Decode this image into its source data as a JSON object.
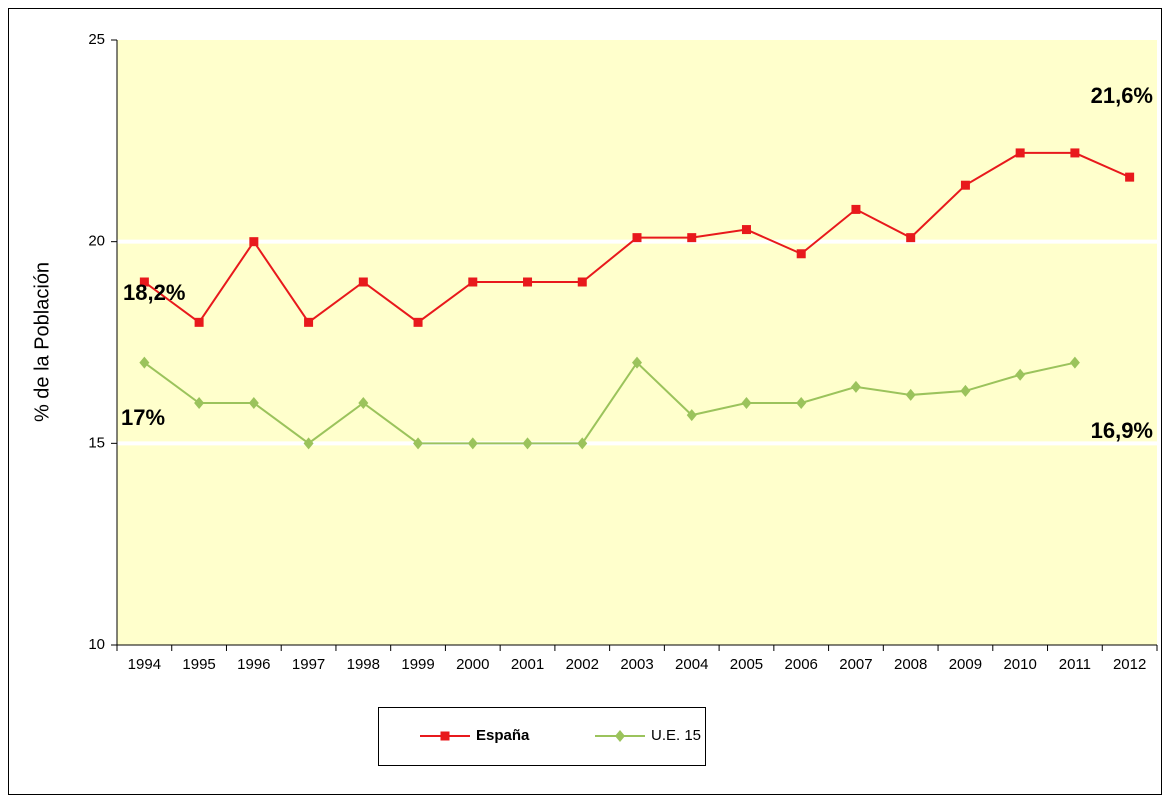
{
  "chart_data": {
    "type": "line",
    "y_label": "% de la Población",
    "categories": [
      "1994",
      "1995",
      "1996",
      "1997",
      "1998",
      "1999",
      "2000",
      "2001",
      "2002",
      "2003",
      "2004",
      "2005",
      "2006",
      "2007",
      "2008",
      "2009",
      "2010",
      "2011",
      "2012"
    ],
    "series": [
      {
        "name": "España",
        "color": "#e8191c",
        "marker": "square",
        "values": [
          19,
          18,
          20,
          18,
          19,
          18,
          19,
          19,
          19,
          20.1,
          20.1,
          20.3,
          19.7,
          20.8,
          20.1,
          21.4,
          22.2,
          22.2,
          21.6
        ]
      },
      {
        "name": "U.E. 15",
        "color": "#9bc35c",
        "marker": "diamond",
        "values": [
          17,
          16,
          16,
          15,
          16,
          15,
          15,
          15,
          15,
          17,
          15.7,
          16,
          16,
          16.4,
          16.2,
          16.3,
          16.7,
          17,
          null
        ]
      }
    ],
    "annotations": [
      "18,2%",
      "17%",
      "21,6%",
      "16,9%"
    ],
    "ylim": [
      10,
      25
    ],
    "yticks": [
      10,
      15,
      20,
      25
    ],
    "grid": true,
    "plot_background": "#ffffcc",
    "legend": "bottom"
  }
}
